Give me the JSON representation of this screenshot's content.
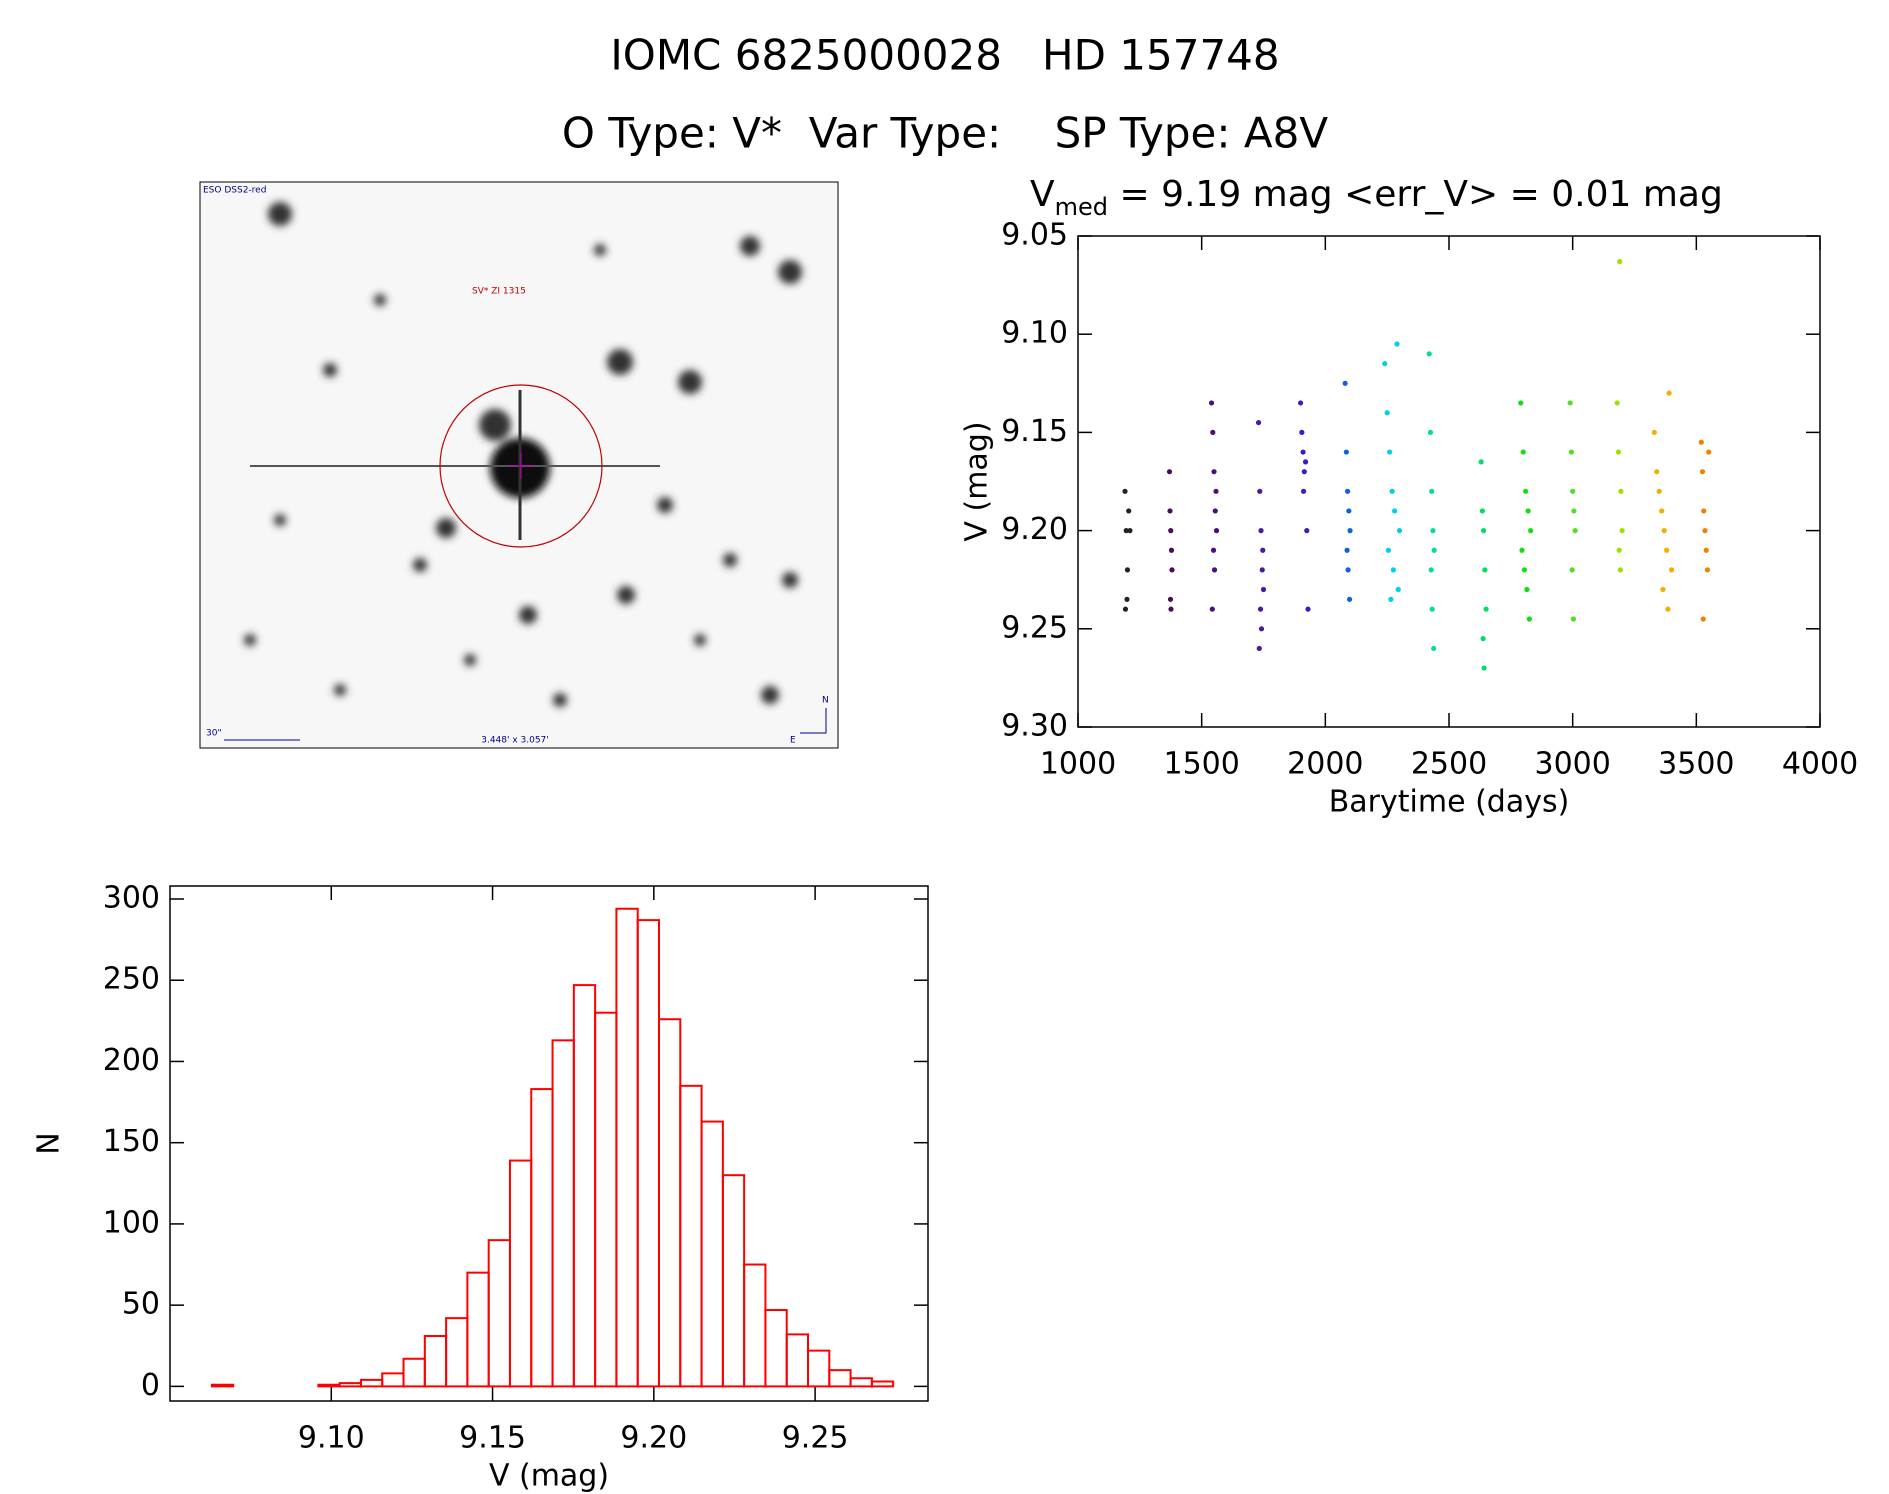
{
  "header": {
    "title": "IOMC 6825000028   HD 157748",
    "subtitle": "O Type: V*  Var Type:    SP Type: A8V"
  },
  "image": {
    "survey": "ESO DSS2-red",
    "target": "SV* ZI 1315",
    "scale": "30\"",
    "size": "3.448' x 3.057'",
    "north": "N",
    "east": "E"
  },
  "chart_data": [
    {
      "type": "scatter",
      "title": {
        "main": "V",
        "sub": "med",
        "rest": " = 9.19 mag <err_V> = 0.01 mag"
      },
      "x_label": "Barytime (days)",
      "y_label": "V (mag)",
      "xlim": [
        1000,
        4000
      ],
      "xticks": [
        1000,
        1500,
        2000,
        2500,
        3000,
        3500,
        4000
      ],
      "ylim": [
        9.3,
        9.05
      ],
      "yticks": [
        {
          "value": 9.05,
          "label": "9.05"
        },
        {
          "value": 9.1,
          "label": "9.10"
        },
        {
          "value": 9.15,
          "label": "9.15"
        },
        {
          "value": 9.2,
          "label": "9.20"
        },
        {
          "value": 9.25,
          "label": "9.25"
        },
        {
          "value": 9.3,
          "label": "9.30"
        }
      ],
      "series": [
        {
          "color": "#222222",
          "x": [
            1190,
            1195,
            1200,
            1205,
            1210,
            1198,
            1192
          ],
          "values": [
            9.18,
            9.2,
            9.22,
            9.19,
            9.2,
            9.235,
            9.24
          ]
        },
        {
          "color": "#4b0a5a",
          "x": [
            1370,
            1372,
            1375,
            1378,
            1380,
            1374,
            1376
          ],
          "values": [
            9.17,
            9.19,
            9.2,
            9.21,
            9.22,
            9.235,
            9.24
          ]
        },
        {
          "color": "#4b0e80",
          "x": [
            1540,
            1545,
            1550,
            1555,
            1560,
            1548,
            1552,
            1558,
            1543
          ],
          "values": [
            9.135,
            9.15,
            9.17,
            9.19,
            9.2,
            9.21,
            9.22,
            9.18,
            9.24
          ]
        },
        {
          "color": "#4a18a0",
          "x": [
            1730,
            1735,
            1740,
            1745,
            1750,
            1738,
            1742,
            1747,
            1733
          ],
          "values": [
            9.145,
            9.18,
            9.2,
            9.22,
            9.23,
            9.24,
            9.25,
            9.21,
            9.26
          ]
        },
        {
          "color": "#3420c0",
          "x": [
            1900,
            1905,
            1910,
            1915,
            1920,
            1925,
            1930,
            1912
          ],
          "values": [
            9.135,
            9.15,
            9.16,
            9.17,
            9.165,
            9.2,
            9.24,
            9.18
          ]
        },
        {
          "color": "#1060e0",
          "x": [
            2080,
            2085,
            2090,
            2095,
            2100,
            2088,
            2092,
            2098
          ],
          "values": [
            9.125,
            9.16,
            9.18,
            9.19,
            9.2,
            9.21,
            9.22,
            9.235
          ]
        },
        {
          "color": "#00d0e8",
          "x": [
            2240,
            2250,
            2260,
            2270,
            2280,
            2290,
            2300,
            2255,
            2275,
            2295,
            2265
          ],
          "values": [
            9.115,
            9.14,
            9.16,
            9.18,
            9.19,
            9.105,
            9.2,
            9.21,
            9.22,
            9.23,
            9.235
          ]
        },
        {
          "color": "#00e090",
          "x": [
            2420,
            2425,
            2430,
            2435,
            2440,
            2428,
            2432,
            2438
          ],
          "values": [
            9.11,
            9.15,
            9.18,
            9.2,
            9.21,
            9.22,
            9.24,
            9.26
          ]
        },
        {
          "color": "#00e060",
          "x": [
            2630,
            2635,
            2640,
            2645,
            2650,
            2638,
            2642
          ],
          "values": [
            9.165,
            9.19,
            9.2,
            9.22,
            9.24,
            9.255,
            9.27
          ]
        },
        {
          "color": "#10e010",
          "x": [
            2790,
            2800,
            2810,
            2820,
            2830,
            2795,
            2805,
            2815,
            2825
          ],
          "values": [
            9.135,
            9.16,
            9.18,
            9.19,
            9.2,
            9.21,
            9.22,
            9.23,
            9.245
          ]
        },
        {
          "color": "#50e020",
          "x": [
            2990,
            2995,
            3000,
            3005,
            3010,
            2998,
            3003
          ],
          "values": [
            9.135,
            9.16,
            9.18,
            9.19,
            9.2,
            9.22,
            9.245
          ]
        },
        {
          "color": "#a0e000",
          "x": [
            3180,
            3185,
            3190,
            3195,
            3200,
            3188,
            3193
          ],
          "values": [
            9.135,
            9.16,
            9.063,
            9.18,
            9.2,
            9.21,
            9.22
          ]
        },
        {
          "color": "#f0b000",
          "x": [
            3330,
            3340,
            3350,
            3360,
            3370,
            3380,
            3390,
            3400,
            3365,
            3385
          ],
          "values": [
            9.15,
            9.17,
            9.18,
            9.19,
            9.2,
            9.21,
            9.13,
            9.22,
            9.23,
            9.24
          ]
        },
        {
          "color": "#f08000",
          "x": [
            3520,
            3525,
            3530,
            3535,
            3540,
            3545,
            3550,
            3528
          ],
          "values": [
            9.155,
            9.17,
            9.19,
            9.2,
            9.21,
            9.22,
            9.16,
            9.245
          ]
        }
      ]
    },
    {
      "type": "histogram",
      "x_label": "V (mag)",
      "y_label": "N",
      "color": "#ff0000",
      "xlim": [
        9.05,
        9.285
      ],
      "xticks": [
        {
          "value": 9.1,
          "label": "9.10"
        },
        {
          "value": 9.15,
          "label": "9.15"
        },
        {
          "value": 9.2,
          "label": "9.20"
        },
        {
          "value": 9.25,
          "label": "9.25"
        }
      ],
      "ylim": [
        -9,
        308
      ],
      "yticks": [
        0,
        50,
        100,
        150,
        200,
        250,
        300
      ],
      "bins": [
        9.063,
        9.0696,
        9.0762,
        9.0828,
        9.0894,
        9.096,
        9.1026,
        9.1092,
        9.1158,
        9.1224,
        9.129,
        9.1356,
        9.1422,
        9.1488,
        9.1554,
        9.162,
        9.1686,
        9.1752,
        9.1818,
        9.1884,
        9.195,
        9.2016,
        9.2082,
        9.2148,
        9.2214,
        9.228,
        9.2346,
        9.2412,
        9.2478,
        9.2544,
        9.261,
        9.2676,
        9.2742
      ],
      "values": [
        1,
        0,
        0,
        0,
        0,
        1,
        2,
        4,
        8,
        17,
        31,
        42,
        70,
        90,
        139,
        183,
        213,
        247,
        230,
        294,
        287,
        226,
        185,
        163,
        130,
        75,
        47,
        32,
        22,
        10,
        5,
        3
      ]
    }
  ]
}
